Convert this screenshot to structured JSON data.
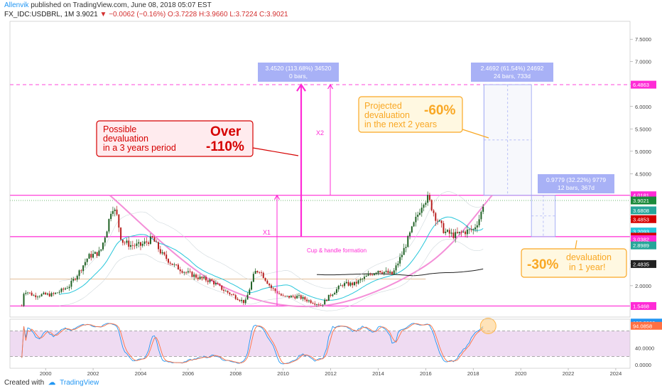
{
  "header": {
    "author": "Allenvik",
    "published": "published on TradingView.com, June 08, 2018 05:07 EST",
    "symbol": "FX_IDC:USDBRL, 1M",
    "last": "3.9021",
    "change": "−0.0062 (−0.16%)",
    "ohlc": "O:3.7228 H:3.9660 L:3.7224 C:3.9021"
  },
  "footer": {
    "created_with": "Created with",
    "brand": "TradingView"
  },
  "colors": {
    "candle_up": "#1b5e20",
    "candle_down": "#b71c1c",
    "magenta": "#ff2bd6",
    "cup": "#f48fd8",
    "ma_fast": "#26c6da",
    "ma_slow": "#212121",
    "red_box": "#d50000",
    "orange_box": "#f9a825",
    "measure": "#9fa8f5",
    "stoch_k": "#2196f3",
    "stoch_d": "#ff7043",
    "stoch_band": "#e1bee7"
  },
  "chart_data": {
    "type": "candlestick",
    "x_ticks": [
      "2000",
      "2002",
      "2004",
      "2006",
      "2008",
      "2010",
      "2012",
      "2014",
      "2016",
      "2018",
      "2020",
      "2022",
      "2024"
    ],
    "y_ticks": [
      "2.0000",
      "2.5000",
      "3.0000",
      "3.5000",
      "4.0000",
      "4.5000",
      "5.0000",
      "5.5000",
      "6.0000",
      "6.5000",
      "7.0000",
      "7.5000"
    ],
    "ylim": [
      1.3,
      7.9
    ],
    "xlim": [
      1998.5,
      2024.6
    ],
    "price_labels": [
      {
        "value": "6.4863",
        "y": 6.4863,
        "bg": "#ff2bd6",
        "fg": "#ffffff"
      },
      {
        "value": "4.0181",
        "y": 4.0181,
        "bg": "#ff2bd6",
        "fg": "#ffffff"
      },
      {
        "value": "3.9021",
        "y": 3.9021,
        "bg": "#1b8a3a",
        "fg": "#ffffff"
      },
      {
        "value": "3.6808",
        "y": 3.6808,
        "bg": "#26a69a",
        "fg": "#ffffff"
      },
      {
        "value": "3.4853",
        "y": 3.4853,
        "bg": "#d50000",
        "fg": "#ffffff"
      },
      {
        "value": "3.2093",
        "y": 3.2093,
        "bg": "#26c6da",
        "fg": "#ffffff"
      },
      {
        "value": "3.0944",
        "y": 3.0944,
        "bg": "#d50000",
        "fg": "#ffffff"
      },
      {
        "value": "3.0382",
        "y": 3.0382,
        "bg": "#ff2bd6",
        "fg": "#ffffff"
      },
      {
        "value": "2.8989",
        "y": 2.8989,
        "bg": "#26a69a",
        "fg": "#ffffff"
      },
      {
        "value": "2.4835",
        "y": 2.4835,
        "bg": "#212121",
        "fg": "#ffffff"
      },
      {
        "value": "1.5468",
        "y": 1.5468,
        "bg": "#ff2bd6",
        "fg": "#ffffff"
      }
    ],
    "levels": {
      "upper_dashed": 6.4863,
      "resistance": 4.0181,
      "support_mid": 3.0944,
      "support_low": 1.5468,
      "last_dotted": 3.9021,
      "tan_line": 2.15
    },
    "anchors": [
      [
        1998.9,
        1.21
      ],
      [
        1999.1,
        1.9
      ],
      [
        1999.5,
        1.78
      ],
      [
        1999.9,
        1.8
      ],
      [
        2000.3,
        1.8
      ],
      [
        2000.7,
        1.9
      ],
      [
        2001.0,
        2.0
      ],
      [
        2001.4,
        2.3
      ],
      [
        2001.8,
        2.65
      ],
      [
        2002.3,
        2.75
      ],
      [
        2002.6,
        3.3
      ],
      [
        2002.8,
        3.8
      ],
      [
        2003.0,
        3.55
      ],
      [
        2003.2,
        3.0
      ],
      [
        2003.6,
        2.9
      ],
      [
        2004.0,
        2.9
      ],
      [
        2004.5,
        3.05
      ],
      [
        2004.9,
        2.7
      ],
      [
        2005.4,
        2.45
      ],
      [
        2005.9,
        2.3
      ],
      [
        2006.5,
        2.17
      ],
      [
        2007.0,
        2.1
      ],
      [
        2007.5,
        1.9
      ],
      [
        2008.0,
        1.75
      ],
      [
        2008.4,
        1.62
      ],
      [
        2008.8,
        2.3
      ],
      [
        2009.0,
        2.35
      ],
      [
        2009.5,
        1.95
      ],
      [
        2010.0,
        1.75
      ],
      [
        2010.6,
        1.76
      ],
      [
        2011.0,
        1.68
      ],
      [
        2011.6,
        1.57
      ],
      [
        2012.0,
        1.8
      ],
      [
        2012.5,
        2.03
      ],
      [
        2013.0,
        2.04
      ],
      [
        2013.5,
        2.2
      ],
      [
        2014.0,
        2.35
      ],
      [
        2014.6,
        2.25
      ],
      [
        2015.0,
        2.7
      ],
      [
        2015.3,
        3.1
      ],
      [
        2015.6,
        3.5
      ],
      [
        2015.9,
        3.9
      ],
      [
        2016.1,
        3.95
      ],
      [
        2016.4,
        3.55
      ],
      [
        2016.8,
        3.2
      ],
      [
        2017.2,
        3.12
      ],
      [
        2017.6,
        3.2
      ],
      [
        2018.0,
        3.25
      ],
      [
        2018.3,
        3.55
      ],
      [
        2018.45,
        3.9
      ]
    ],
    "cup_curve": [
      [
        2002.7,
        4.0181
      ],
      [
        2007.2,
        2.05
      ],
      [
        2011.6,
        1.55
      ],
      [
        2016.0,
        2.45
      ],
      [
        2018.8,
        4.0181
      ]
    ],
    "stochastic": {
      "ticks": [
        "100.0000",
        "40.0000",
        "0.0000"
      ],
      "ylim": [
        -8,
        108
      ],
      "band": [
        20,
        80
      ],
      "last_k": {
        "value": "100.0000",
        "bg": "#2196f3"
      },
      "last_d": {
        "value": "94.0858",
        "bg": "#ff7043"
      }
    },
    "annotations": {
      "red_box": {
        "line1": "Possible",
        "line2": "devaluation",
        "line3": "in a 3 years period",
        "big1": "Over",
        "big2": "-110%"
      },
      "orange_top": {
        "line1": "Projected",
        "line2": "devaluation",
        "line3": "in the next 2 years",
        "big": "-60%"
      },
      "orange_bottom": {
        "big": "-30%",
        "line1": "devaluation",
        "line2": "in 1 year!"
      },
      "measure1": {
        "line1": "3.4520 (113.68%) 34520",
        "line2": "0 bars,"
      },
      "measure2": {
        "line1": "2.4692 (61.54%) 24692",
        "line2": "24 bars, 733d"
      },
      "measure3": {
        "line1": "0.9779 (32.22%) 9779",
        "line2": "12 bars, 367d"
      },
      "x1": "X1",
      "x2": "X2",
      "cup_label": "Cup & handle formation"
    }
  }
}
